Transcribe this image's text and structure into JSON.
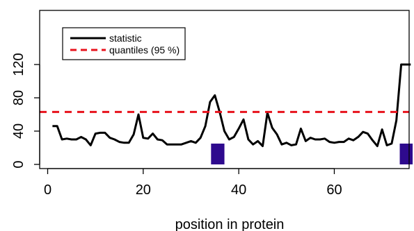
{
  "chart_data": {
    "type": "line",
    "xlabel": "position in protein",
    "ylabel": "",
    "xlim": [
      0,
      76
    ],
    "ylim": [
      0,
      120
    ],
    "x_ticks": [
      0,
      20,
      40,
      60
    ],
    "y_ticks": [
      0,
      40,
      80,
      120
    ],
    "grid": false,
    "legend_position": "top-left",
    "series": [
      {
        "name": "statistic",
        "style": "solid",
        "color": "#000000",
        "x": [
          1,
          2,
          3,
          4,
          5,
          6,
          7,
          8,
          9,
          10,
          11,
          12,
          13,
          14,
          15,
          16,
          17,
          18,
          19,
          20,
          21,
          22,
          23,
          24,
          25,
          26,
          27,
          28,
          29,
          30,
          31,
          32,
          33,
          34,
          35,
          36,
          37,
          38,
          39,
          40,
          41,
          42,
          43,
          44,
          45,
          46,
          47,
          48,
          49,
          50,
          51,
          52,
          53,
          54,
          55,
          56,
          57,
          58,
          59,
          60,
          61,
          62,
          63,
          64,
          65,
          66,
          67,
          68,
          69,
          70,
          71,
          72,
          73,
          74,
          75,
          76
        ],
        "y": [
          46,
          46,
          30,
          31,
          30,
          30,
          33,
          30,
          23,
          37,
          38,
          38,
          32,
          30,
          27,
          26,
          26,
          36,
          60,
          32,
          31,
          37,
          30,
          29,
          24,
          24,
          24,
          24,
          26,
          28,
          26,
          32,
          46,
          75,
          83,
          63,
          40,
          30,
          33,
          43,
          54,
          30,
          24,
          28,
          22,
          62,
          44,
          36,
          24,
          26,
          23,
          24,
          43,
          28,
          32,
          30,
          30,
          31,
          27,
          26,
          27,
          27,
          31,
          29,
          33,
          39,
          37,
          29,
          22,
          42,
          23,
          25,
          53,
          120,
          120,
          120
        ]
      },
      {
        "name": "quantiles (95 %)",
        "style": "dashed",
        "color": "#e8121c",
        "x": [
          0,
          76
        ],
        "y": [
          63,
          63
        ]
      }
    ],
    "bars": [
      {
        "x_start": 34.2,
        "x_end": 37.0,
        "y_bottom": 0,
        "y_top": 25,
        "color": "#2e0a8e"
      },
      {
        "x_start": 73.7,
        "x_end": 76.4,
        "y_bottom": 0,
        "y_top": 25,
        "color": "#2e0a8e"
      }
    ]
  }
}
